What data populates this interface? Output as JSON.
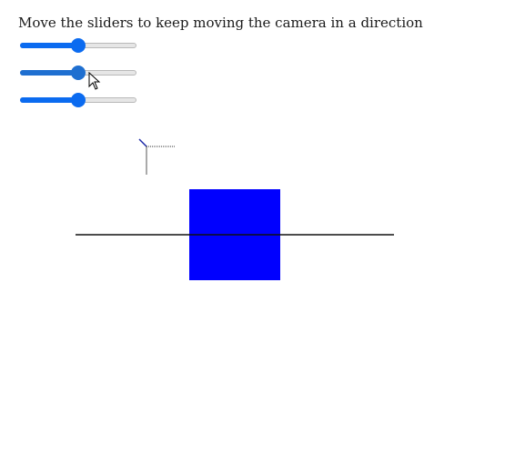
{
  "instructions": "Move the sliders to keep moving the camera in a direction",
  "sliders": [
    {
      "name": "slider-1",
      "value": 0.5
    },
    {
      "name": "slider-2",
      "value": 0.5
    },
    {
      "name": "slider-3",
      "value": 0.5
    }
  ],
  "colors": {
    "slider_accent": "#0b6bf0",
    "cube": "#0000ff",
    "line": "#111111"
  }
}
